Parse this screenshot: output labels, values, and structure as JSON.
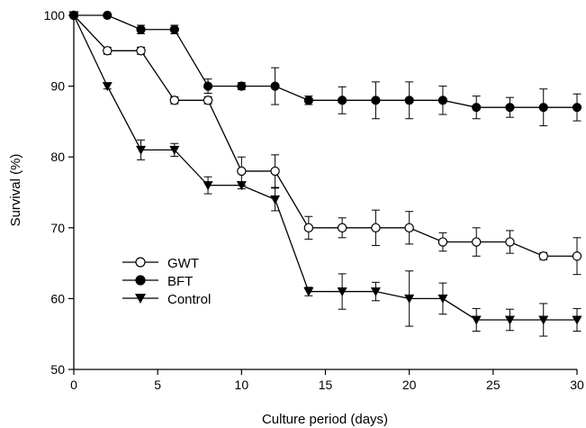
{
  "chart_data": {
    "type": "line",
    "title": "",
    "xlabel": "Culture period (days)",
    "ylabel": "Survival (%)",
    "xlim": [
      0,
      30
    ],
    "ylim": [
      50,
      100
    ],
    "xticks": [
      0,
      5,
      10,
      15,
      20,
      25,
      30
    ],
    "yticks": [
      50,
      60,
      70,
      80,
      90,
      100
    ],
    "grid": false,
    "legend_position": "lower-left",
    "series": [
      {
        "name": "GWT",
        "marker": "open-circle",
        "x": [
          0,
          2,
          4,
          6,
          8,
          10,
          12,
          14,
          16,
          18,
          20,
          22,
          24,
          26,
          28,
          30
        ],
        "y": [
          100,
          95,
          95,
          88,
          88,
          78,
          78,
          70,
          70,
          70,
          70,
          68,
          68,
          68,
          66,
          66
        ],
        "err": [
          0,
          0.5,
          0.5,
          0.5,
          0.5,
          2,
          2.3,
          1.6,
          1.4,
          2.5,
          2.3,
          1.3,
          2,
          1.6,
          0.5,
          2.6
        ]
      },
      {
        "name": "BFT",
        "marker": "filled-circle",
        "x": [
          0,
          2,
          4,
          6,
          8,
          10,
          12,
          14,
          16,
          18,
          20,
          22,
          24,
          26,
          28,
          30
        ],
        "y": [
          100,
          100,
          98,
          98,
          90,
          90,
          90,
          88,
          88,
          88,
          88,
          88,
          87,
          87,
          87,
          87
        ],
        "err": [
          0,
          0,
          0.6,
          0.6,
          1,
          0.5,
          2.6,
          0.6,
          1.9,
          2.6,
          2.6,
          2,
          1.6,
          1.4,
          2.6,
          1.9
        ]
      },
      {
        "name": "Control",
        "marker": "filled-triangle-down",
        "x": [
          0,
          2,
          4,
          6,
          8,
          10,
          12,
          14,
          16,
          18,
          20,
          22,
          24,
          26,
          28,
          30
        ],
        "y": [
          100,
          90,
          81,
          81,
          76,
          76,
          74,
          61,
          61,
          61,
          60,
          60,
          57,
          57,
          57,
          57
        ],
        "err": [
          0,
          0.4,
          1.4,
          0.9,
          1.2,
          0.5,
          1.6,
          0.6,
          2.5,
          1.3,
          3.9,
          2.2,
          1.6,
          1.5,
          2.3,
          1.6
        ]
      }
    ]
  }
}
